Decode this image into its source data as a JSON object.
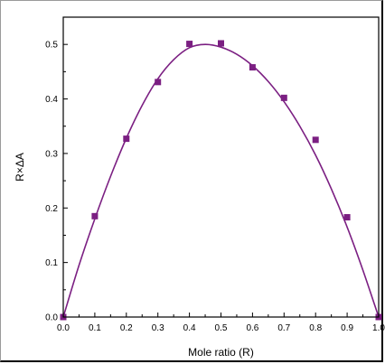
{
  "chart_data": {
    "type": "scatter",
    "xlabel": "Mole ratio (R)",
    "ylabel": "R×ΔA",
    "xlim": [
      0.0,
      1.0
    ],
    "ylim": [
      0.0,
      0.55
    ],
    "x_ticks": [
      "0.0",
      "0.1",
      "0.2",
      "0.3",
      "0.4",
      "0.5",
      "0.6",
      "0.7",
      "0.8",
      "0.9",
      "1.0"
    ],
    "y_ticks": [
      "0.0",
      "0.1",
      "0.2",
      "0.3",
      "0.4",
      "0.5"
    ],
    "grid": false,
    "colors": {
      "series": "#7b1f82",
      "axes": "#000000"
    },
    "series": [
      {
        "x": [
          0.0,
          0.1,
          0.2,
          0.3,
          0.4,
          0.5,
          0.6,
          0.7,
          0.8,
          0.9,
          1.0
        ],
        "y": [
          0.0,
          0.185,
          0.327,
          0.431,
          0.501,
          0.502,
          0.458,
          0.402,
          0.325,
          0.183,
          0.0
        ]
      }
    ],
    "fit_curve": {
      "x": [
        0.0,
        0.05,
        0.1,
        0.15,
        0.2,
        0.25,
        0.3,
        0.35,
        0.4,
        0.45,
        0.5,
        0.55,
        0.6,
        0.65,
        0.7,
        0.75,
        0.8,
        0.85,
        0.9,
        0.95,
        1.0
      ],
      "y": [
        0.0,
        0.095,
        0.18,
        0.258,
        0.328,
        0.388,
        0.437,
        0.472,
        0.494,
        0.5,
        0.495,
        0.482,
        0.461,
        0.432,
        0.395,
        0.35,
        0.297,
        0.235,
        0.165,
        0.086,
        0.0
      ]
    }
  }
}
